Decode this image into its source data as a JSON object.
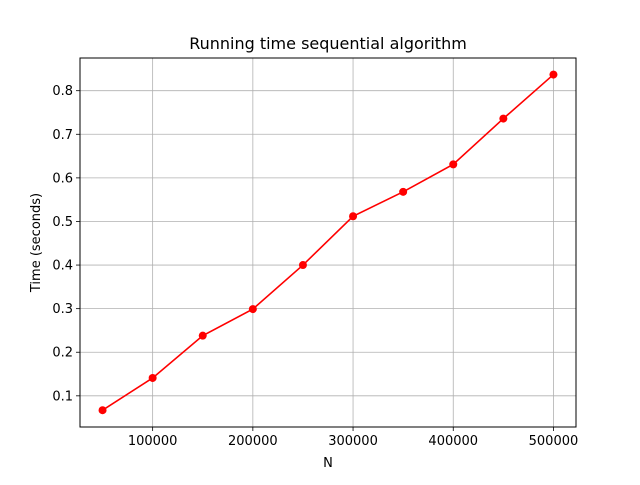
{
  "chart_data": {
    "type": "line",
    "title": "Running time sequential algorithm",
    "xlabel": "N",
    "ylabel": "Time (seconds)",
    "xlim": [
      27500,
      522500
    ],
    "ylim": [
      0.0285,
      0.875
    ],
    "xticks": [
      100000,
      200000,
      300000,
      400000,
      500000
    ],
    "yticks": [
      0.1,
      0.2,
      0.3,
      0.4,
      0.5,
      0.6,
      0.7,
      0.8
    ],
    "grid": true,
    "series": [
      {
        "color": "#ff0000",
        "marker": "circle",
        "x": [
          50000,
          100000,
          150000,
          200000,
          250000,
          300000,
          350000,
          400000,
          450000,
          500000
        ],
        "y": [
          0.067,
          0.141,
          0.238,
          0.299,
          0.4,
          0.512,
          0.568,
          0.631,
          0.736,
          0.837
        ]
      }
    ]
  }
}
